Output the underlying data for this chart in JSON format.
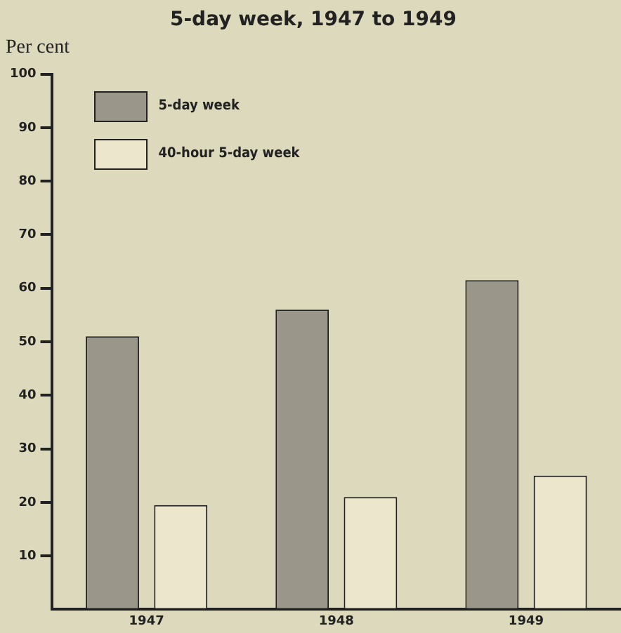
{
  "chart_data": {
    "type": "bar",
    "title": "5-day week, 1947 to 1949",
    "ylabel": "Per cent",
    "categories": [
      "1947",
      "1948",
      "1949"
    ],
    "series": [
      {
        "name": "5-day week",
        "color": "#9a968a",
        "values": [
          51,
          56,
          61.5
        ]
      },
      {
        "name": "40-hour 5-day week",
        "color": "#ebe6cc",
        "values": [
          19.5,
          21,
          25
        ]
      }
    ],
    "ylim": [
      0,
      100
    ],
    "yticks": [
      10,
      20,
      30,
      40,
      50,
      60,
      70,
      80,
      90,
      100
    ],
    "grid": false,
    "legend": "top left"
  }
}
